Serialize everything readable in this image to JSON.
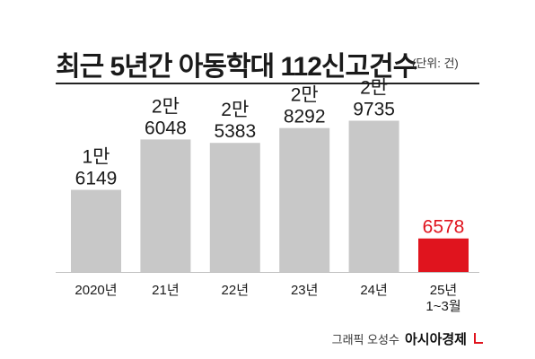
{
  "header": {
    "title": "최근 5년간 아동학대 112신고건수",
    "unit_note": "(단위: 건)"
  },
  "chart_data": {
    "type": "bar",
    "title": "최근 5년간 아동학대 112신고건수",
    "unit": "(단위: 건)",
    "categories": [
      "2020년",
      "21년",
      "22년",
      "23년",
      "24년",
      "25년 1~3월"
    ],
    "category_lines": [
      [
        "2020년"
      ],
      [
        "21년"
      ],
      [
        "22년"
      ],
      [
        "23년"
      ],
      [
        "24년"
      ],
      [
        "25년",
        "1~3월"
      ]
    ],
    "values": [
      16149,
      26048,
      25383,
      28292,
      29735,
      6578
    ],
    "value_labels": [
      [
        "1만",
        "6149"
      ],
      [
        "2만",
        "6048"
      ],
      [
        "2만",
        "5383"
      ],
      [
        "2만",
        "8292"
      ],
      [
        "2만",
        "9735"
      ],
      [
        "6578"
      ]
    ],
    "bar_colors": [
      "#c8c8c8",
      "#c8c8c8",
      "#c8c8c8",
      "#c8c8c8",
      "#c8c8c8",
      "#e0141e"
    ],
    "label_colors": [
      "#1a1a1a",
      "#1a1a1a",
      "#1a1a1a",
      "#1a1a1a",
      "#1a1a1a",
      "#e0141e"
    ],
    "ylim": [
      0,
      30000
    ],
    "grid": false,
    "legend": "none",
    "xlabel": "",
    "ylabel": ""
  },
  "footer": {
    "credit": "그래픽 오성수",
    "brand": "아시아경제"
  }
}
